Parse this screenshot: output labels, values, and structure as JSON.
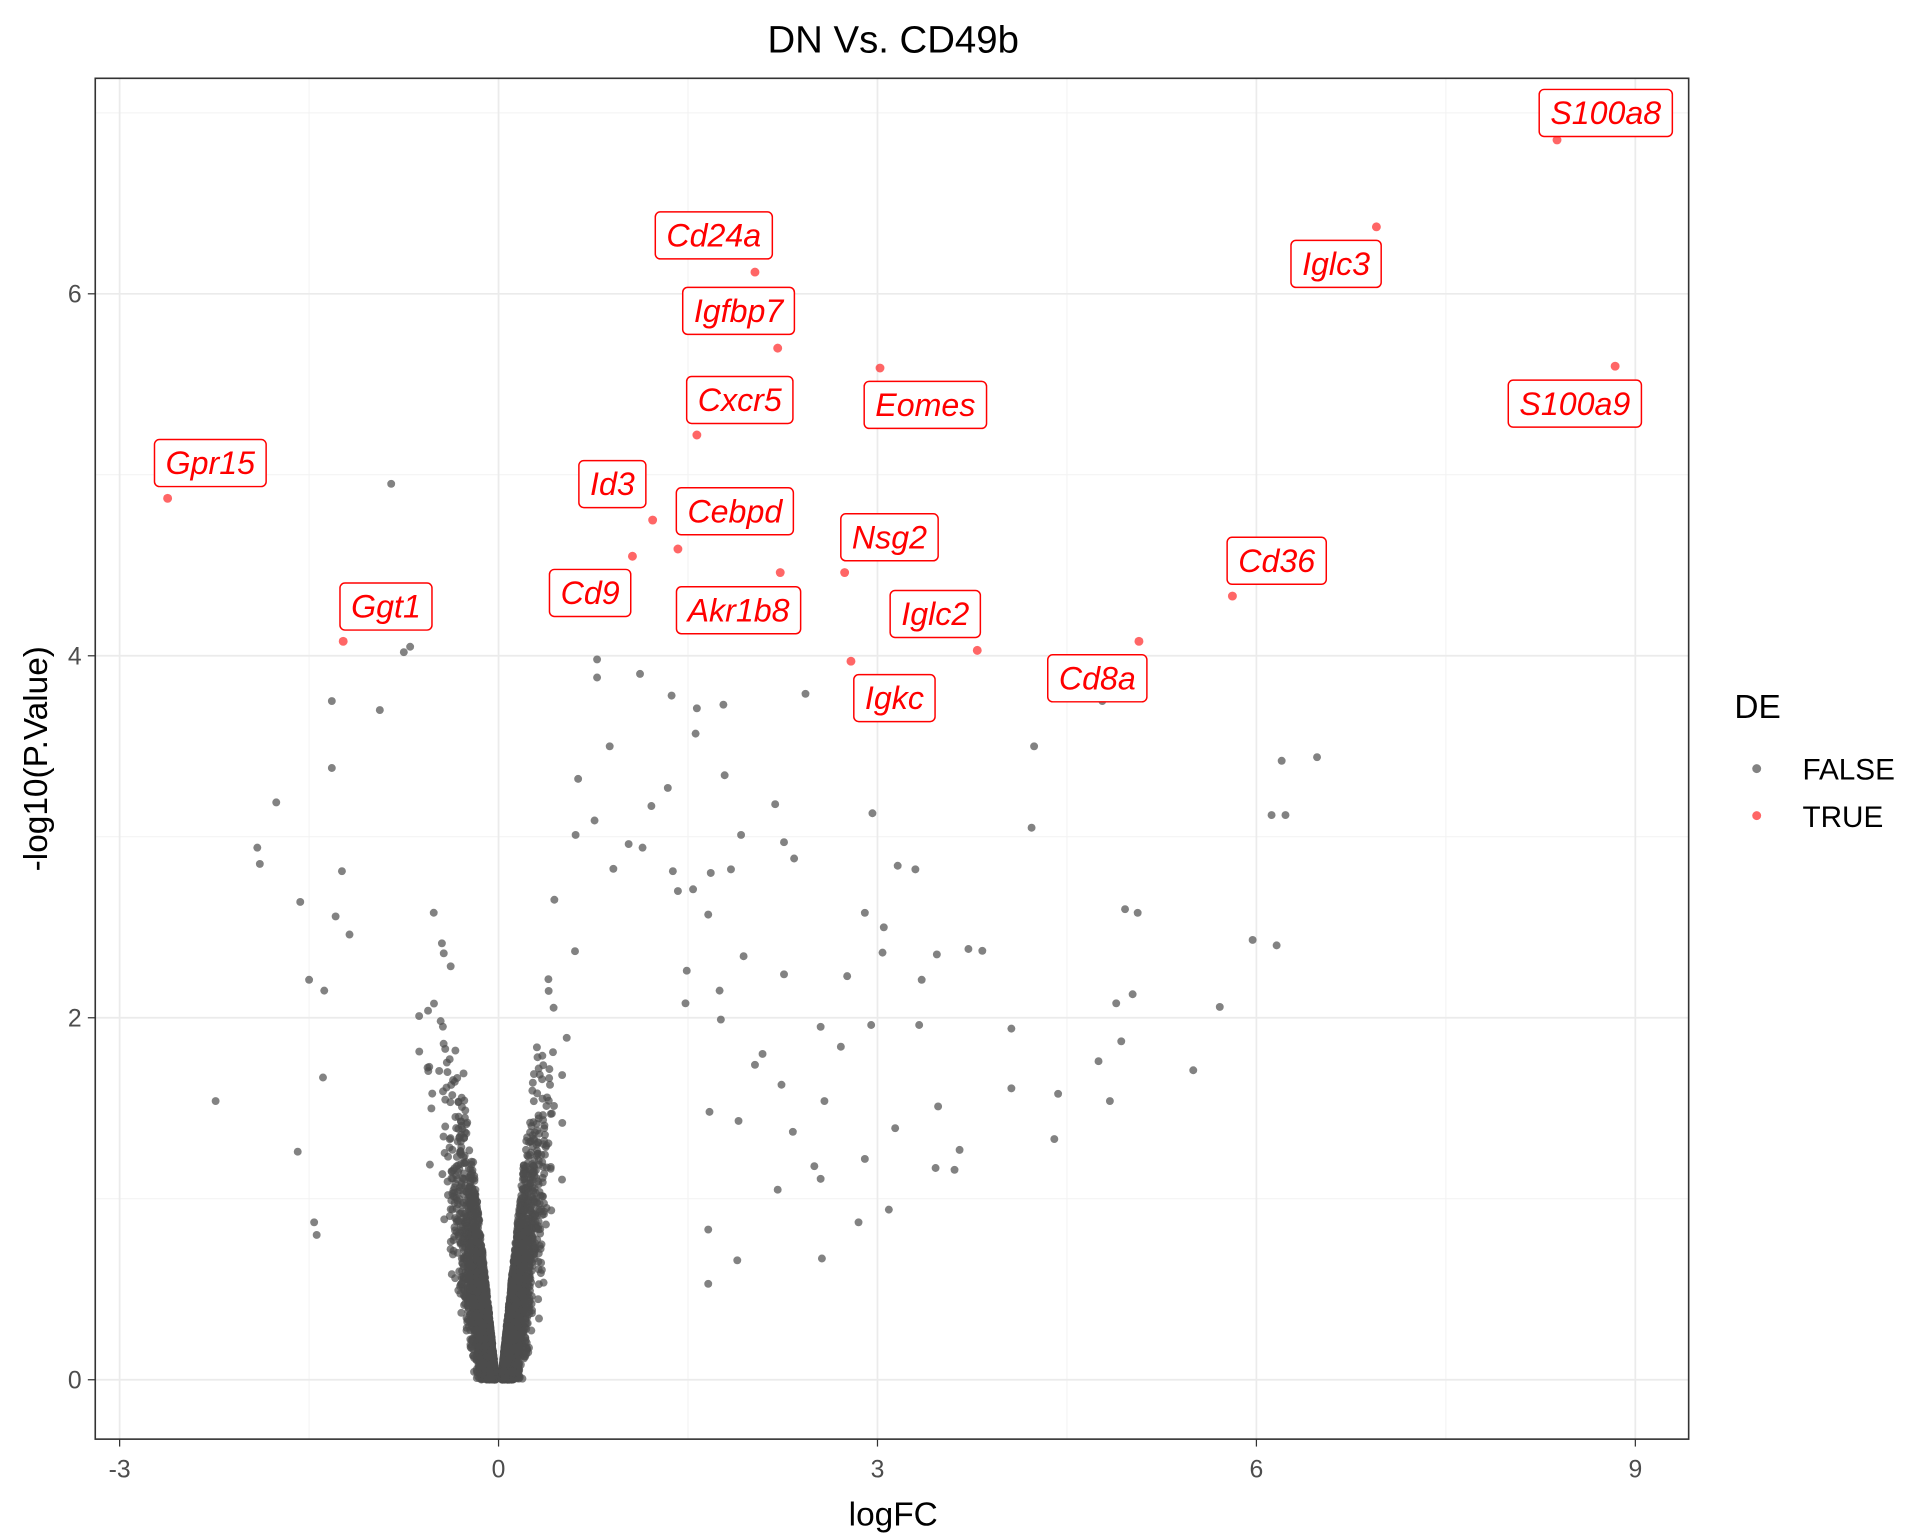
{
  "chart_data": {
    "type": "scatter",
    "title": "DN Vs. CD49b",
    "xlabel": "logFC",
    "ylabel": "-log10(P.Value)",
    "xlim": [
      -3.3,
      9.4
    ],
    "ylim": [
      -0.3,
      7.2
    ],
    "x_ticks": [
      "-3",
      "0",
      "3",
      "6",
      "9"
    ],
    "x_tick_values": [
      -3,
      0,
      3,
      6,
      9
    ],
    "y_ticks": [
      "0",
      "2",
      "4",
      "6"
    ],
    "y_tick_values": [
      0,
      2,
      4,
      6
    ],
    "grid": true,
    "legend": {
      "title": "DE",
      "placement": "right",
      "entries": [
        {
          "label": "FALSE",
          "color": "#4d4d4d"
        },
        {
          "label": "TRUE",
          "color": "#ff0000"
        }
      ]
    },
    "series": [
      {
        "name": "TRUE",
        "color": "#ff0000",
        "points": [
          {
            "gene": "S100a8",
            "x": 8.38,
            "y": 6.85
          },
          {
            "gene": "Iglc3",
            "x": 6.95,
            "y": 6.37
          },
          {
            "gene": "Cd24a",
            "x": 2.03,
            "y": 6.12
          },
          {
            "gene": "Igfbp7",
            "x": 2.21,
            "y": 5.7
          },
          {
            "gene": "Eomes",
            "x": 3.02,
            "y": 5.59
          },
          {
            "gene": "S100a9",
            "x": 8.84,
            "y": 5.6
          },
          {
            "gene": "Cxcr5",
            "x": 1.57,
            "y": 5.22
          },
          {
            "gene": "Gpr15",
            "x": -2.62,
            "y": 4.87
          },
          {
            "gene": "Id3",
            "x": 1.22,
            "y": 4.75
          },
          {
            "gene": "Cebpd",
            "x": 1.42,
            "y": 4.59
          },
          {
            "gene": "Cd9",
            "x": 1.06,
            "y": 4.55
          },
          {
            "gene": "Akr1b8",
            "x": 2.23,
            "y": 4.46
          },
          {
            "gene": "Nsg2",
            "x": 2.74,
            "y": 4.46
          },
          {
            "gene": "Cd36",
            "x": 5.81,
            "y": 4.33
          },
          {
            "gene": "Ggt1",
            "x": -1.23,
            "y": 4.08
          },
          {
            "gene": "Cd8a",
            "x": 5.07,
            "y": 4.08
          },
          {
            "gene": "Iglc2",
            "x": 3.79,
            "y": 4.03
          },
          {
            "gene": "Igkc",
            "x": 2.79,
            "y": 3.97
          }
        ]
      },
      {
        "name": "FALSE",
        "color": "#4d4d4d",
        "points": [
          [
            -0.85,
            4.95
          ],
          [
            -0.7,
            4.05
          ],
          [
            -0.75,
            4.02
          ],
          [
            -1.32,
            3.75
          ],
          [
            -0.94,
            3.7
          ],
          [
            -1.76,
            3.19
          ],
          [
            -1.91,
            2.94
          ],
          [
            -1.89,
            2.85
          ],
          [
            -1.57,
            2.64
          ],
          [
            -1.5,
            2.21
          ],
          [
            -1.38,
            2.15
          ],
          [
            -2.24,
            1.54
          ],
          [
            -1.59,
            1.26
          ],
          [
            -1.46,
            0.87
          ],
          [
            -1.44,
            0.8
          ],
          [
            -1.32,
            3.38
          ],
          [
            -1.24,
            2.81
          ],
          [
            -1.29,
            2.56
          ],
          [
            -1.18,
            2.46
          ],
          [
            -1.39,
            1.67
          ],
          [
            0.78,
            3.98
          ],
          [
            0.78,
            3.88
          ],
          [
            1.12,
            3.9
          ],
          [
            1.37,
            3.78
          ],
          [
            1.57,
            3.71
          ],
          [
            1.78,
            3.73
          ],
          [
            1.56,
            3.57
          ],
          [
            2.43,
            3.79
          ],
          [
            0.88,
            3.5
          ],
          [
            1.79,
            3.34
          ],
          [
            2.19,
            3.18
          ],
          [
            1.34,
            3.27
          ],
          [
            1.21,
            3.17
          ],
          [
            1.92,
            3.01
          ],
          [
            2.26,
            2.97
          ],
          [
            2.34,
            2.88
          ],
          [
            2.96,
            3.13
          ],
          [
            3.16,
            2.84
          ],
          [
            3.3,
            2.82
          ],
          [
            2.9,
            2.58
          ],
          [
            3.05,
            2.5
          ],
          [
            3.04,
            2.36
          ],
          [
            1.94,
            2.34
          ],
          [
            2.26,
            2.24
          ],
          [
            2.76,
            2.23
          ],
          [
            3.47,
            2.35
          ],
          [
            3.72,
            2.38
          ],
          [
            3.83,
            2.37
          ],
          [
            3.35,
            2.21
          ],
          [
            4.24,
            3.5
          ],
          [
            4.22,
            3.05
          ],
          [
            4.78,
            3.75
          ],
          [
            6.2,
            3.42
          ],
          [
            6.48,
            3.44
          ],
          [
            6.12,
            3.12
          ],
          [
            6.23,
            3.12
          ],
          [
            5.97,
            2.43
          ],
          [
            6.16,
            2.4
          ],
          [
            4.96,
            2.6
          ],
          [
            5.06,
            2.58
          ],
          [
            5.02,
            2.13
          ],
          [
            4.89,
            2.08
          ],
          [
            5.71,
            2.06
          ],
          [
            4.06,
            1.94
          ],
          [
            3.33,
            1.96
          ],
          [
            2.95,
            1.96
          ],
          [
            2.55,
            1.95
          ],
          [
            2.71,
            1.84
          ],
          [
            4.93,
            1.87
          ],
          [
            4.75,
            1.76
          ],
          [
            5.5,
            1.71
          ],
          [
            4.06,
            1.61
          ],
          [
            4.43,
            1.58
          ],
          [
            4.84,
            1.54
          ],
          [
            3.48,
            1.51
          ],
          [
            2.58,
            1.54
          ],
          [
            2.24,
            1.63
          ],
          [
            3.14,
            1.39
          ],
          [
            2.33,
            1.37
          ],
          [
            4.4,
            1.33
          ],
          [
            3.65,
            1.27
          ],
          [
            2.9,
            1.22
          ],
          [
            3.46,
            1.17
          ],
          [
            3.61,
            1.16
          ],
          [
            2.5,
            1.18
          ],
          [
            2.55,
            1.11
          ],
          [
            2.21,
            1.05
          ],
          [
            3.09,
            0.94
          ],
          [
            2.85,
            0.87
          ],
          [
            2.56,
            0.67
          ],
          [
            2.09,
            1.8
          ],
          [
            2.03,
            1.74
          ],
          [
            1.67,
            1.48
          ],
          [
            1.9,
            1.43
          ],
          [
            1.66,
            0.83
          ],
          [
            1.89,
            0.66
          ],
          [
            1.66,
            0.53
          ],
          [
            1.49,
            2.26
          ],
          [
            1.75,
            2.15
          ],
          [
            1.76,
            1.99
          ],
          [
            1.48,
            2.08
          ],
          [
            1.42,
            2.7
          ],
          [
            1.54,
            2.71
          ],
          [
            1.68,
            2.8
          ],
          [
            1.84,
            2.82
          ],
          [
            1.66,
            2.57
          ],
          [
            1.38,
            2.81
          ],
          [
            0.61,
            3.01
          ],
          [
            0.63,
            3.32
          ],
          [
            0.76,
            3.09
          ],
          [
            1.03,
            2.96
          ],
          [
            1.14,
            2.94
          ]
        ]
      }
    ]
  }
}
